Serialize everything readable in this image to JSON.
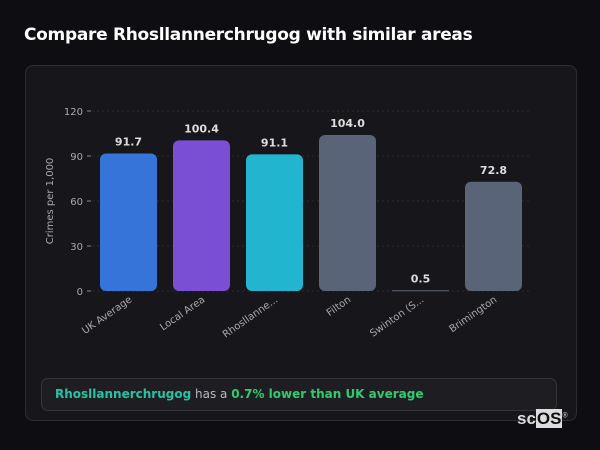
{
  "title": "Compare Rhosllannerchrugog with similar areas",
  "chart_data": {
    "type": "bar",
    "title": "",
    "xlabel": "",
    "ylabel": "Crimes per 1,000",
    "ylim": [
      0,
      120
    ],
    "yticks": [
      0,
      30,
      60,
      90,
      120
    ],
    "grid": true,
    "categories": [
      "UK Average",
      "Local Area",
      "Rhosllanne...",
      "Filton",
      "Swinton (S...",
      "Brimington"
    ],
    "values": [
      91.7,
      100.4,
      91.1,
      104.0,
      0.5,
      72.8
    ],
    "data_labels": [
      "91.7",
      "100.4",
      "91.1",
      "104.0",
      "0.5",
      "72.8"
    ],
    "colors": [
      "#3674d9",
      "#7b4fd4",
      "#22b5d0",
      "#5a6478",
      "#5a6478",
      "#5a6478"
    ]
  },
  "insight": {
    "area": "Rhosllannerchrugog",
    "middle": " has a ",
    "highlight": "0.7% lower than UK average"
  },
  "logo": "scOS"
}
